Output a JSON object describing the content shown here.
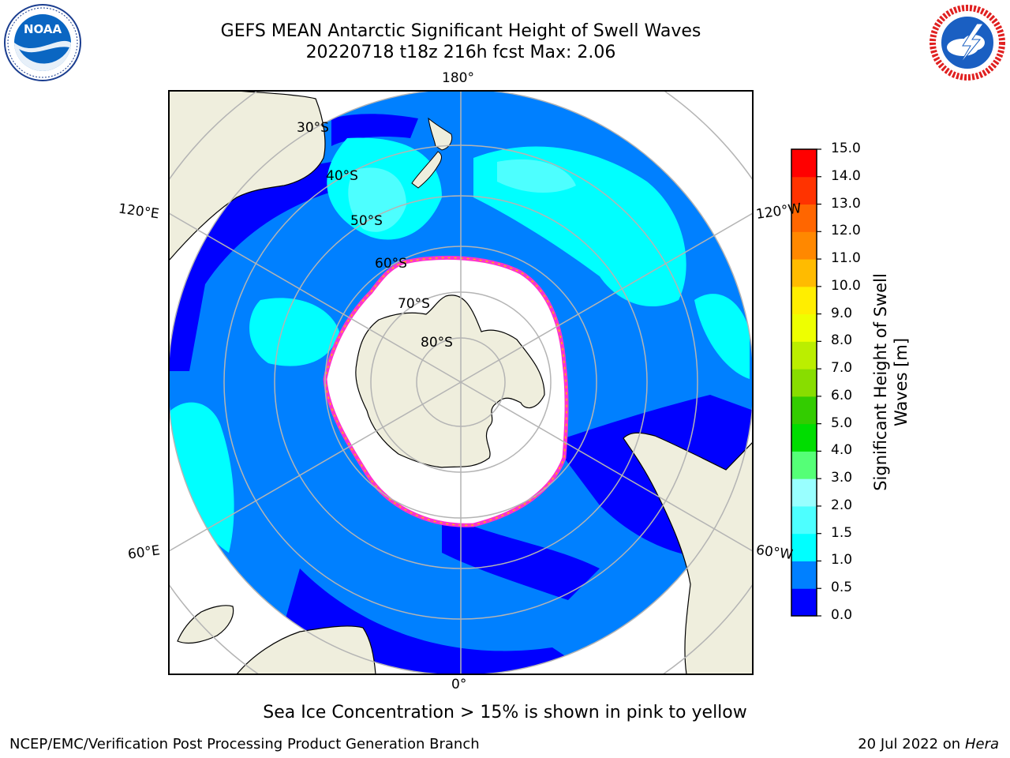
{
  "header": {
    "title_line1": "GEFS MEAN Antarctic Significant Height of Swell Waves",
    "title_line2": "20220718 t18z 216h fcst   Max: 2.06"
  },
  "logos": {
    "left": {
      "icon": "noaa-logo",
      "text": "NOAA",
      "ring_text": "NATIONAL OCEANIC AND ATMOSPHERIC ADMINISTRATION · U.S. DEPARTMENT OF COMMERCE"
    },
    "right": {
      "icon": "nws-logo",
      "ring_text": "NATIONAL WEATHER SERVICE"
    }
  },
  "map": {
    "projection": "south-polar-stereographic",
    "longitude_labels": {
      "top": "180°",
      "bottom": "0°",
      "upper_left": "120°E",
      "upper_right": "120°W",
      "lower_left": "60°E",
      "lower_right": "60°W"
    },
    "latitude_labels": [
      "30°S",
      "40°S",
      "50°S",
      "60°S",
      "70°S",
      "80°S"
    ],
    "colors": {
      "land": "#efeedd",
      "ocean_0_0.5": "#0000ff",
      "ocean_0.5_1.0": "#0080ff",
      "ocean_1.0_1.5": "#00ffff",
      "ocean_1.5_2.0": "#4dffff",
      "sea_ice": "#ffffff",
      "ice_edge": "#ff33cc",
      "grid": "#b4b4b4"
    }
  },
  "colorbar": {
    "label_line1": "Significant Height of Swell",
    "label_line2": "Waves [m]",
    "ticks": [
      "0.0",
      "0.5",
      "1.0",
      "1.5",
      "2.0",
      "3.0",
      "4.0",
      "5.0",
      "6.0",
      "7.0",
      "8.0",
      "9.0",
      "10.0",
      "11.0",
      "12.0",
      "13.0",
      "14.0",
      "15.0"
    ],
    "colors": [
      "#0000ff",
      "#0080ff",
      "#00ffff",
      "#4dffff",
      "#99ffff",
      "#55ff77",
      "#00dd00",
      "#33cc00",
      "#88dd00",
      "#bbee00",
      "#eeff00",
      "#ffee00",
      "#ffbb00",
      "#ff8800",
      "#ff6600",
      "#ff3300",
      "#ff0000"
    ]
  },
  "footer": {
    "note": "Sea Ice Concentration > 15% is shown in pink to yellow",
    "left": "NCEP/EMC/Verification Post Processing Product Generation Branch",
    "right_date": "20 Jul 2022 on",
    "right_host": "Hera"
  }
}
